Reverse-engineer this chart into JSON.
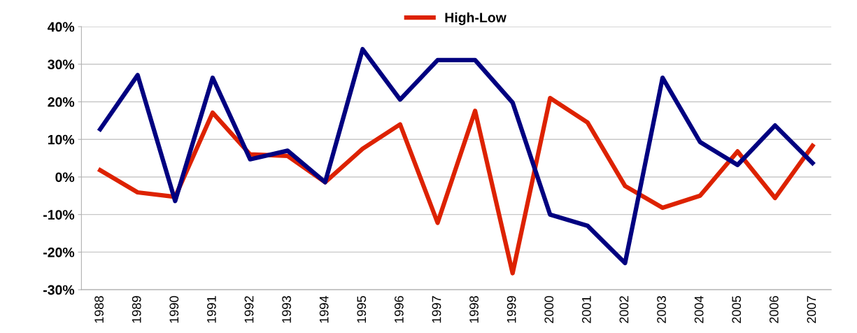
{
  "chart_data": {
    "type": "line",
    "categories": [
      "1988",
      "1989",
      "1990",
      "1991",
      "1992",
      "1993",
      "1994",
      "1995",
      "1996",
      "1997",
      "1998",
      "1999",
      "2000",
      "2001",
      "2002",
      "2003",
      "2004",
      "2005",
      "2006",
      "2007"
    ],
    "series": [
      {
        "color": "#000080",
        "values": [
          12.7,
          27.1,
          -6.4,
          26.4,
          4.7,
          7,
          -1.4,
          34,
          20.6,
          31.1,
          31.1,
          19.8,
          -10,
          -13,
          -22.9,
          26.4,
          9.3,
          3.2,
          13.7,
          3.7
        ]
      },
      {
        "name": "High-Low",
        "color": "#dd2200",
        "values": [
          1.8,
          -4.1,
          -5.3,
          17.1,
          6,
          5.6,
          -1.4,
          7.5,
          14,
          -12.2,
          17.6,
          -25.6,
          21,
          14.5,
          -2.4,
          -8.2,
          -5,
          6.8,
          -5.6,
          8.3
        ]
      }
    ],
    "ylim": [
      -30,
      40
    ],
    "yticks": [
      {
        "value": -30,
        "label": "-30%"
      },
      {
        "value": -20,
        "label": "-20%"
      },
      {
        "value": -10,
        "label": "-10%"
      },
      {
        "value": 0,
        "label": "0%"
      },
      {
        "value": 10,
        "label": "10%"
      },
      {
        "value": 20,
        "label": "20%"
      },
      {
        "value": 30,
        "label": "30%"
      },
      {
        "value": 40,
        "label": "40%"
      }
    ],
    "grid": "y",
    "legend": "top",
    "marker": "none",
    "line_style": "solid"
  }
}
